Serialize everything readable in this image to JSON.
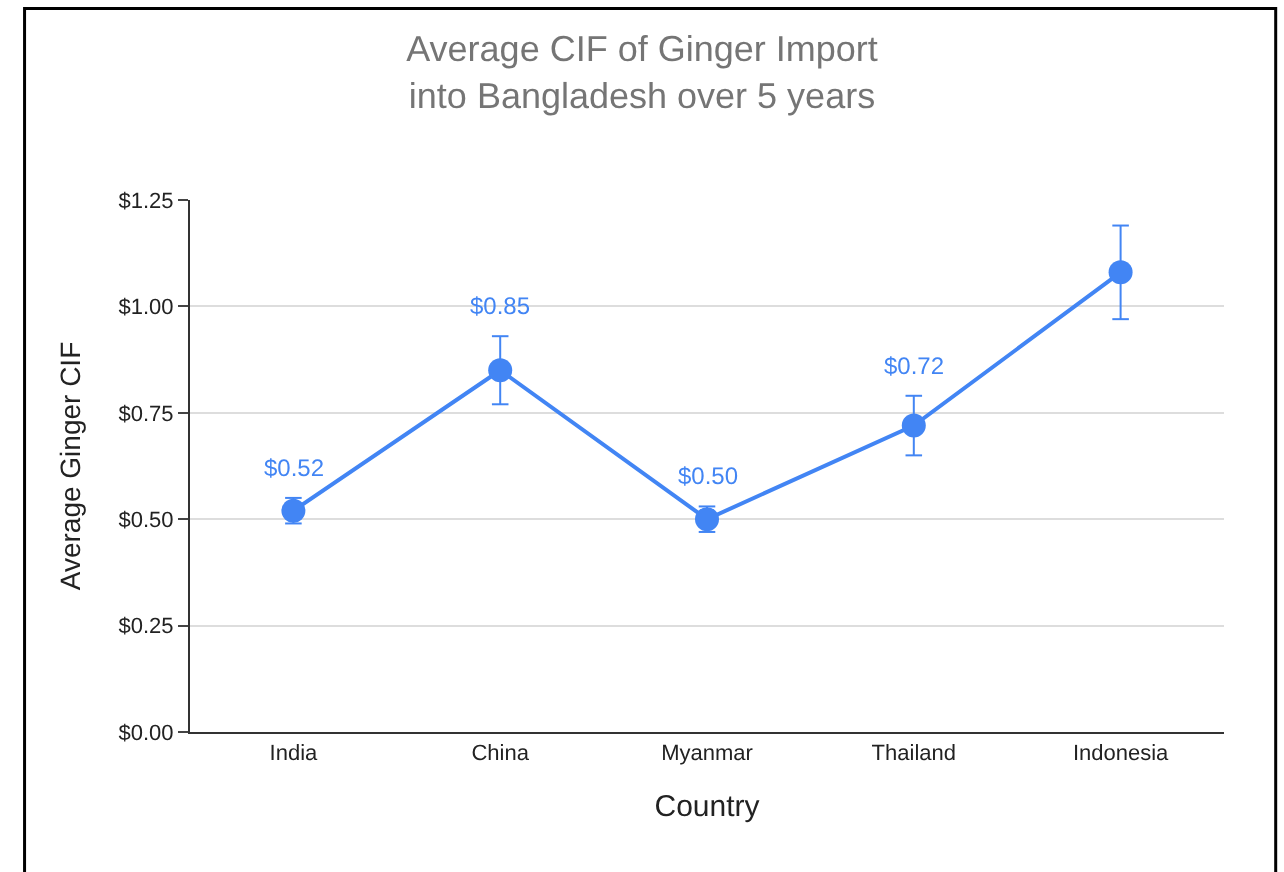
{
  "chart_data": {
    "type": "line",
    "title": "Average CIF of Ginger Import into Bangladesh over 5 years",
    "xlabel": "Country",
    "ylabel": "Average Ginger CIF",
    "categories": [
      "India",
      "China",
      "Myanmar",
      "Thailand",
      "Indonesia"
    ],
    "series": [
      {
        "color": "#4285f4",
        "values": [
          0.52,
          0.85,
          0.5,
          0.72,
          1.08
        ],
        "value_labels": [
          "$0.52",
          "$0.85",
          "$0.50",
          "$0.72",
          null
        ],
        "errors": [
          0.03,
          0.08,
          0.03,
          0.07,
          0.11
        ]
      }
    ],
    "ylim": [
      0,
      1.25
    ],
    "yticks": [
      {
        "value": 0,
        "label": "$0.00"
      },
      {
        "value": 0.25,
        "label": "$0.25"
      },
      {
        "value": 0.5,
        "label": "$0.50"
      },
      {
        "value": 0.75,
        "label": "$0.75"
      },
      {
        "value": 1,
        "label": "$1.00"
      },
      {
        "value": 1.25,
        "label": "$1.25"
      }
    ],
    "grid": "y",
    "legend": false,
    "marker": "circle",
    "line_style": "solid"
  }
}
